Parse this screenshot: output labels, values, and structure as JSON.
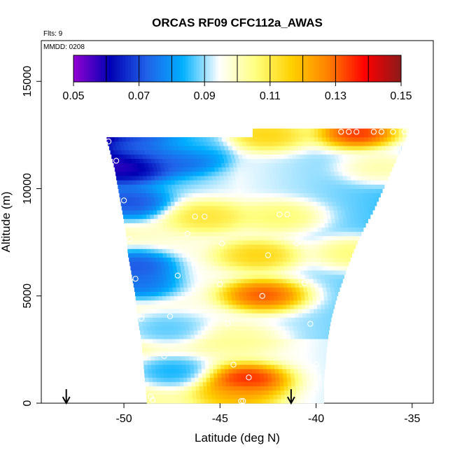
{
  "chart_data": {
    "type": "heatmap",
    "title": "ORCAS RF09 CFC112a_AWAS",
    "annotations": {
      "flights": "Flts: 9",
      "date": "MMDD: 0208"
    },
    "xlabel": "Latitude (deg N)",
    "ylabel": "Altitude (m)",
    "xlim": [
      -54.3,
      -33.9
    ],
    "ylim": [
      0,
      16900
    ],
    "x_ticks": [
      -50,
      -45,
      -40,
      -35
    ],
    "x_tick_labels": [
      "-50",
      "-45",
      "-40",
      "-35"
    ],
    "y_ticks": [
      0,
      5000,
      10000,
      15000
    ],
    "y_tick_labels": [
      "0",
      "5000",
      "10000",
      "15000"
    ],
    "colorbar": {
      "min": 0.05,
      "max": 0.15,
      "ticks": [
        0.05,
        0.07,
        0.09,
        0.11,
        0.13,
        0.15
      ],
      "tick_labels": [
        "0.05",
        "0.07",
        "0.09",
        "0.11",
        "0.13",
        "0.15"
      ],
      "colors": [
        "#9400d3",
        "#0000b3",
        "#2060e8",
        "#00b0ff",
        "#ffffff",
        "#ffff80",
        "#ffd000",
        "#ff8000",
        "#ff0000",
        "#8b1a1a"
      ]
    },
    "envelope": {
      "left": [
        [
          0,
          -48.8
        ],
        [
          1000,
          -48.9
        ],
        [
          2000,
          -49.0
        ],
        [
          3000,
          -49.1
        ],
        [
          4000,
          -49.3
        ],
        [
          5000,
          -49.4
        ],
        [
          6000,
          -49.6
        ],
        [
          7000,
          -49.8
        ],
        [
          8000,
          -49.9
        ],
        [
          9000,
          -50.1
        ],
        [
          10000,
          -50.3
        ],
        [
          11000,
          -50.5
        ],
        [
          12000,
          -50.8
        ],
        [
          12300,
          -50.9
        ]
      ],
      "right": [
        [
          0,
          -39.6
        ],
        [
          1000,
          -39.6
        ],
        [
          2000,
          -39.5
        ],
        [
          3000,
          -39.4
        ],
        [
          4000,
          -39.2
        ],
        [
          5000,
          -38.9
        ],
        [
          6000,
          -38.5
        ],
        [
          7000,
          -38.1
        ],
        [
          8000,
          -37.6
        ],
        [
          9000,
          -37.0
        ],
        [
          10000,
          -36.5
        ],
        [
          11000,
          -36.0
        ],
        [
          12000,
          -35.5
        ],
        [
          12600,
          -35.2
        ]
      ]
    },
    "features": [
      {
        "lat": -43.6,
        "alt": 1100,
        "value": 0.145
      },
      {
        "lat": -42.7,
        "alt": 5050,
        "value": 0.14
      },
      {
        "lat": -43.0,
        "alt": 6900,
        "value": 0.12
      },
      {
        "lat": -45.6,
        "alt": 8700,
        "value": 0.115
      },
      {
        "lat": -41.9,
        "alt": 8700,
        "value": 0.11
      },
      {
        "lat": -42.5,
        "alt": 12500,
        "value": 0.12
      },
      {
        "lat": -37.8,
        "alt": 12600,
        "value": 0.145
      },
      {
        "lat": -44.0,
        "alt": 400,
        "value": 0.125
      },
      {
        "lat": -44.0,
        "alt": 3000,
        "value": 0.105
      },
      {
        "lat": -50.0,
        "alt": 11000,
        "value": 0.055
      },
      {
        "lat": -49.8,
        "alt": 9300,
        "value": 0.065
      },
      {
        "lat": -49.5,
        "alt": 6400,
        "value": 0.065
      },
      {
        "lat": -49.3,
        "alt": 5600,
        "value": 0.07
      },
      {
        "lat": -49.0,
        "alt": 12000,
        "value": 0.075
      },
      {
        "lat": -46.5,
        "alt": 12000,
        "value": 0.09
      },
      {
        "lat": -47.0,
        "alt": 11500,
        "value": 0.07
      },
      {
        "lat": -47.5,
        "alt": 1500,
        "value": 0.08
      },
      {
        "lat": -47.8,
        "alt": 3500,
        "value": 0.085
      },
      {
        "lat": -38.0,
        "alt": 7000,
        "value": 0.11
      },
      {
        "lat": -36.5,
        "alt": 11000,
        "value": 0.105
      }
    ],
    "points": [
      {
        "lat": -50.8,
        "alt": 12200
      },
      {
        "lat": -50.4,
        "alt": 11300
      },
      {
        "lat": -50.0,
        "alt": 9450
      },
      {
        "lat": -49.7,
        "alt": 7650
      },
      {
        "lat": -49.4,
        "alt": 5800
      },
      {
        "lat": -49.1,
        "alt": 3950
      },
      {
        "lat": -48.9,
        "alt": 2150
      },
      {
        "lat": -48.6,
        "alt": 300
      },
      {
        "lat": -48.5,
        "alt": 150
      },
      {
        "lat": -47.9,
        "alt": 2200
      },
      {
        "lat": -47.6,
        "alt": 4050
      },
      {
        "lat": -47.2,
        "alt": 5950
      },
      {
        "lat": -46.7,
        "alt": 7900
      },
      {
        "lat": -46.3,
        "alt": 8700
      },
      {
        "lat": -45.8,
        "alt": 8700
      },
      {
        "lat": -44.9,
        "alt": 7450
      },
      {
        "lat": -45.0,
        "alt": 5550
      },
      {
        "lat": -44.6,
        "alt": 3700
      },
      {
        "lat": -44.3,
        "alt": 1800
      },
      {
        "lat": -43.9,
        "alt": 100
      },
      {
        "lat": -43.8,
        "alt": 100
      },
      {
        "lat": -43.5,
        "alt": 1200
      },
      {
        "lat": -42.8,
        "alt": 5000
      },
      {
        "lat": -42.5,
        "alt": 6900
      },
      {
        "lat": -41.9,
        "alt": 8800
      },
      {
        "lat": -41.5,
        "alt": 8800
      },
      {
        "lat": -41.0,
        "alt": 7450
      },
      {
        "lat": -40.6,
        "alt": 5600
      },
      {
        "lat": -40.3,
        "alt": 3700
      },
      {
        "lat": -40.0,
        "alt": 1800
      },
      {
        "lat": -38.7,
        "alt": 12650
      },
      {
        "lat": -38.3,
        "alt": 12650
      },
      {
        "lat": -37.9,
        "alt": 12650
      },
      {
        "lat": -37.0,
        "alt": 12650
      },
      {
        "lat": -36.6,
        "alt": 12650
      },
      {
        "lat": -36.0,
        "alt": 12650
      },
      {
        "lat": -35.4,
        "alt": 12650
      }
    ],
    "arrows": [
      {
        "lat": -53.0
      },
      {
        "lat": -41.3
      }
    ]
  }
}
